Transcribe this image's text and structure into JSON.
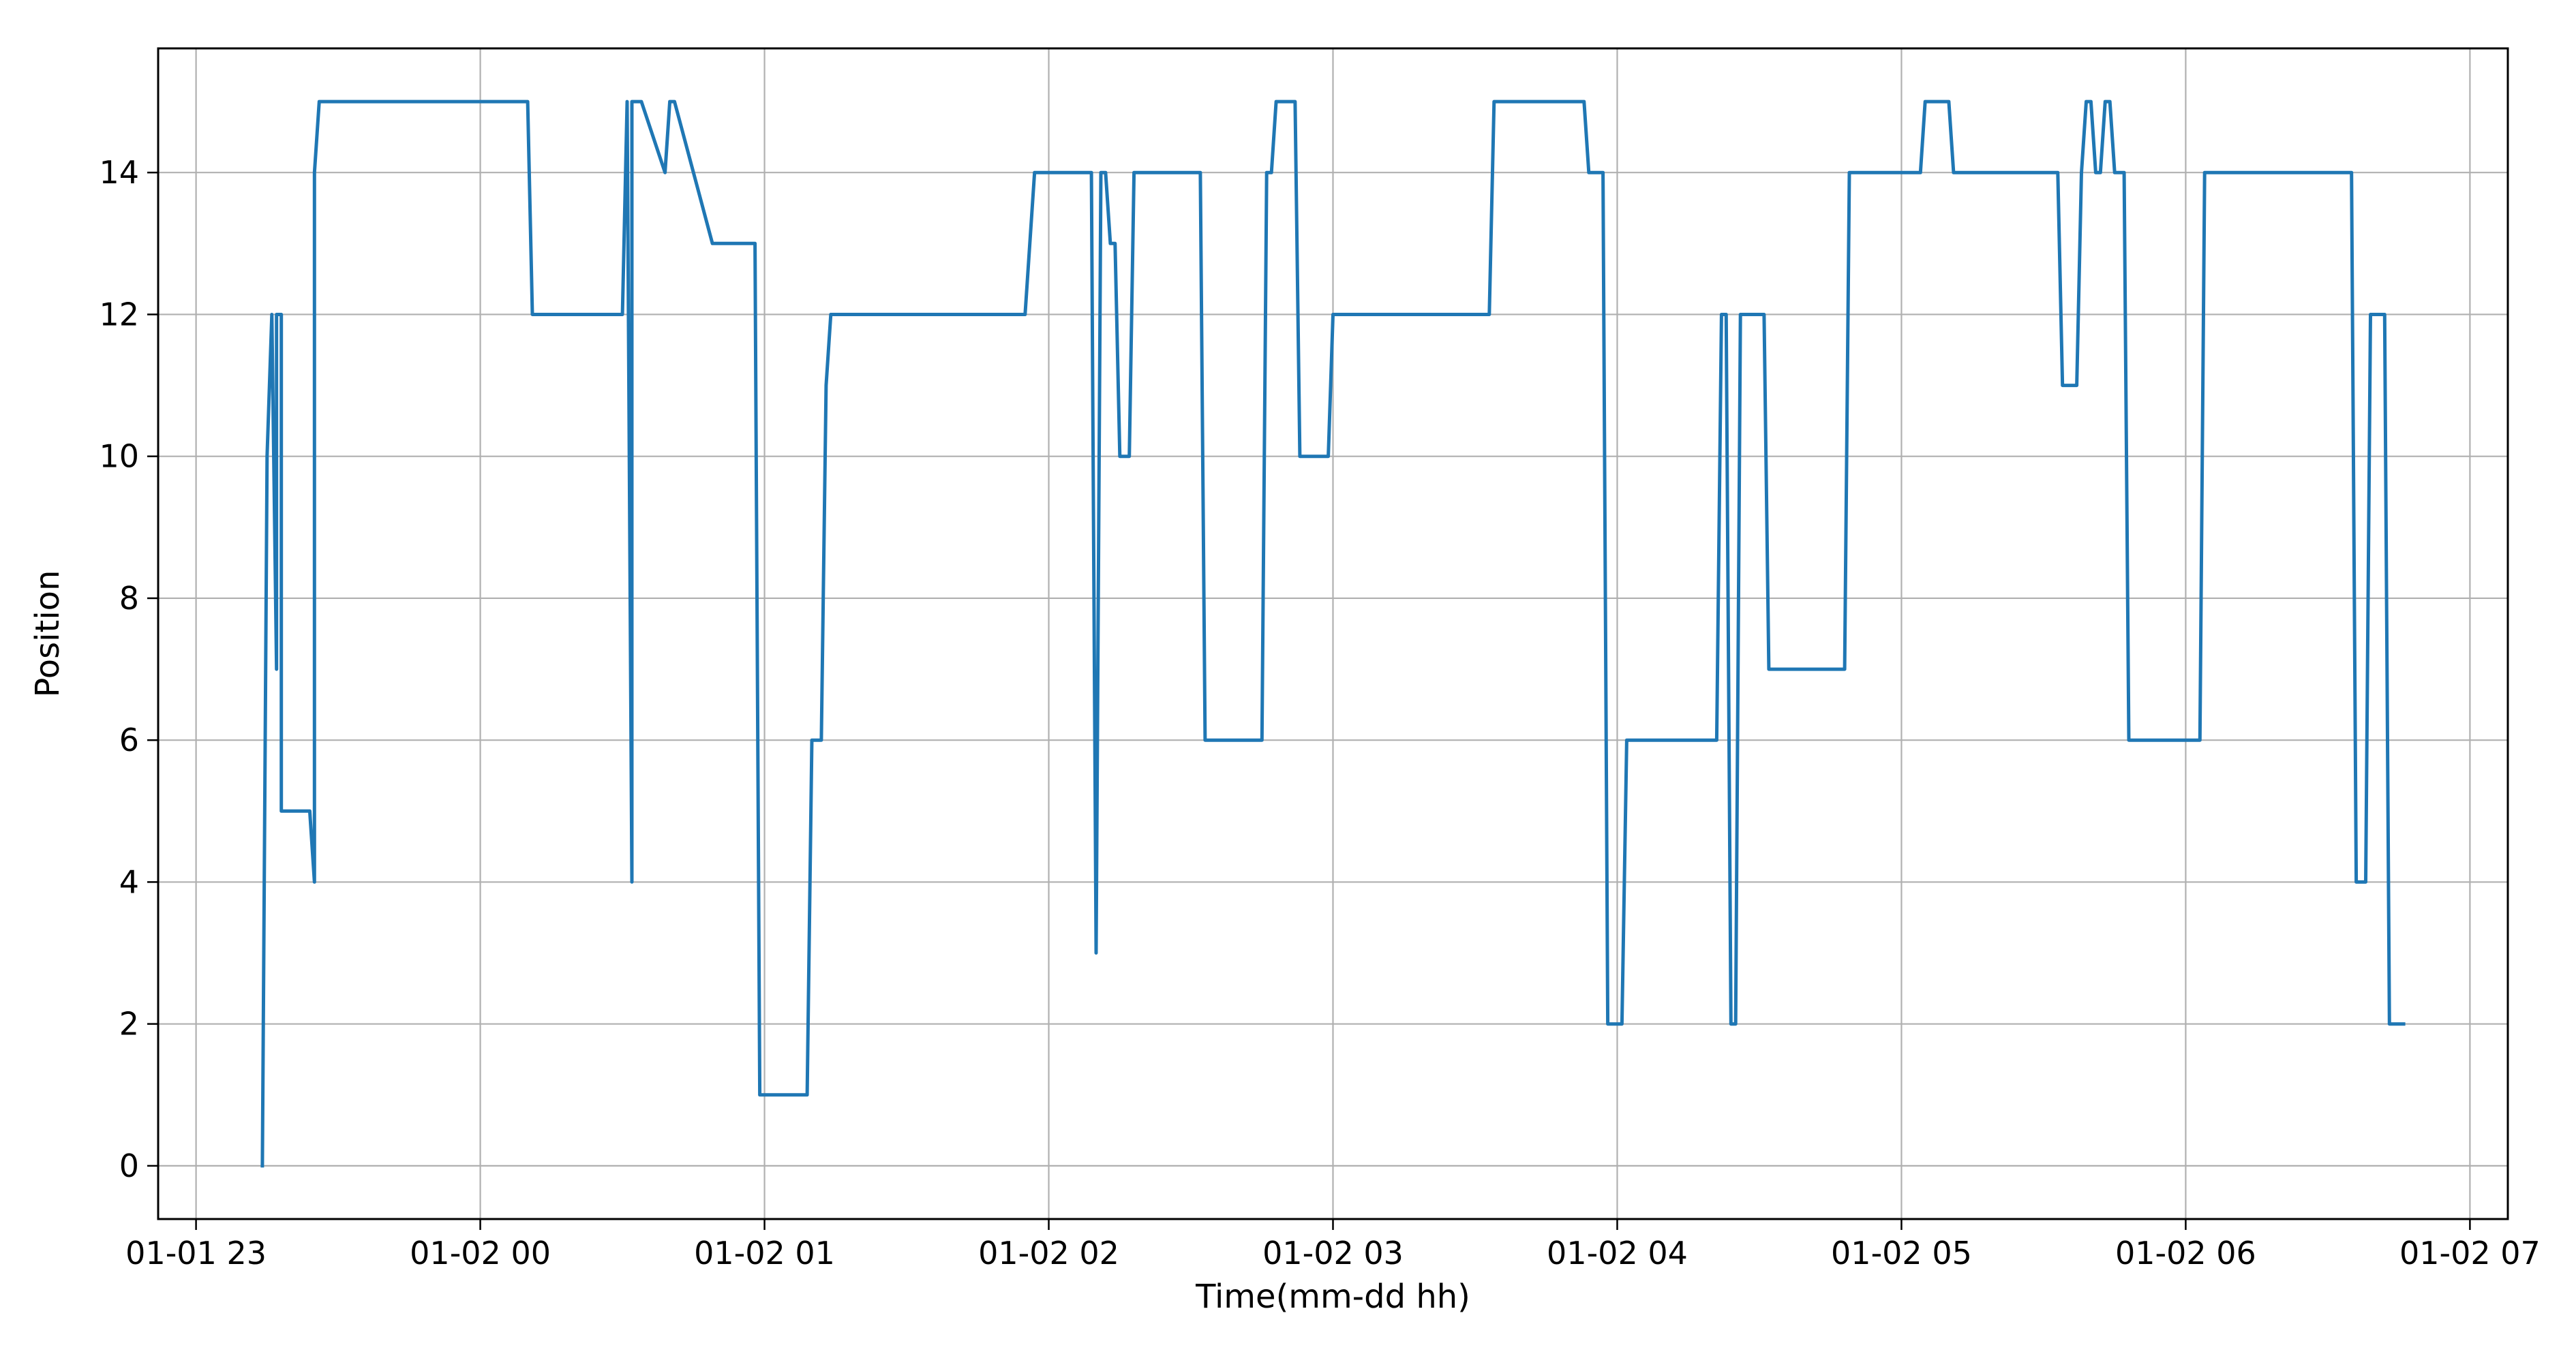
{
  "chart_data": {
    "type": "line",
    "title": "",
    "xlabel": "Time(mm-dd hh)",
    "ylabel": "Position",
    "xlim": [
      "01-01 22:52",
      "01-02 07:08"
    ],
    "ylim": [
      -0.75,
      15.75
    ],
    "x_ticks": [
      "01-01 23",
      "01-02 00",
      "01-02 01",
      "01-02 02",
      "01-02 03",
      "01-02 04",
      "01-02 05",
      "01-02 06",
      "01-02 07"
    ],
    "y_ticks": [
      0,
      2,
      4,
      6,
      8,
      10,
      12,
      14
    ],
    "grid": true,
    "legend": "none",
    "line_color": "#1f77b4",
    "series": [
      {
        "x": [
          "01-01 23:14",
          "01-01 23:15",
          "01-01 23:16",
          "01-01 23:17",
          "01-01 23:17",
          "01-01 23:18",
          "01-01 23:18",
          "01-01 23:19",
          "01-01 23:20",
          "01-01 23:24",
          "01-01 23:25",
          "01-01 23:25",
          "01-01 23:26",
          "01-01 23:27",
          "01-01 23:28",
          "01-02 00:10",
          "01-02 00:11",
          "01-02 00:30",
          "01-02 00:31",
          "01-02 00:32",
          "01-02 00:32",
          "01-02 00:33",
          "01-02 00:34",
          "01-02 00:39",
          "01-02 00:40",
          "01-02 00:41",
          "01-02 00:49",
          "01-02 00:50",
          "01-02 00:58",
          "01-02 00:59",
          "01-02 01:09",
          "01-02 01:10",
          "01-02 01:12",
          "01-02 01:13",
          "01-02 01:14",
          "01-02 01:55",
          "01-02 01:57",
          "01-02 02:09",
          "01-02 02:10",
          "01-02 02:11",
          "01-02 02:12",
          "01-02 02:13",
          "01-02 02:14",
          "01-02 02:15",
          "01-02 02:16",
          "01-02 02:17",
          "01-02 02:18",
          "01-02 02:19",
          "01-02 02:32",
          "01-02 02:33",
          "01-02 02:45",
          "01-02 02:46",
          "01-02 02:47",
          "01-02 02:48",
          "01-02 02:52",
          "01-02 02:53",
          "01-02 02:59",
          "01-02 03:00",
          "01-02 03:33",
          "01-02 03:34",
          "01-02 03:53",
          "01-02 03:54",
          "01-02 03:57",
          "01-02 03:58",
          "01-02 04:01",
          "01-02 04:02",
          "01-02 04:21",
          "01-02 04:22",
          "01-02 04:23",
          "01-02 04:24",
          "01-02 04:25",
          "01-02 04:26",
          "01-02 04:31",
          "01-02 04:32",
          "01-02 04:48",
          "01-02 04:49",
          "01-02 05:04",
          "01-02 05:05",
          "01-02 05:10",
          "01-02 05:11",
          "01-02 05:33",
          "01-02 05:34",
          "01-02 05:37",
          "01-02 05:38",
          "01-02 05:39",
          "01-02 05:40",
          "01-02 05:41",
          "01-02 05:42",
          "01-02 05:43",
          "01-02 05:44",
          "01-02 05:45",
          "01-02 05:47",
          "01-02 05:48",
          "01-02 06:03",
          "01-02 06:04",
          "01-02 06:35",
          "01-02 06:36",
          "01-02 06:38",
          "01-02 06:39",
          "01-02 06:42",
          "01-02 06:43",
          "01-02 06:44",
          "01-02 06:46"
        ],
        "y": [
          0,
          10,
          12,
          7,
          12,
          12,
          5,
          5,
          5,
          5,
          4,
          14,
          15,
          15,
          15,
          15,
          12,
          12,
          15,
          4,
          15,
          15,
          15,
          14,
          15,
          15,
          13,
          13,
          13,
          1,
          1,
          6,
          6,
          11,
          12,
          12,
          14,
          14,
          3,
          14,
          14,
          13,
          13,
          10,
          10,
          10,
          14,
          14,
          14,
          6,
          6,
          14,
          14,
          15,
          15,
          10,
          10,
          12,
          12,
          15,
          15,
          14,
          14,
          2,
          2,
          6,
          6,
          12,
          12,
          2,
          2,
          12,
          12,
          7,
          7,
          14,
          14,
          15,
          15,
          14,
          14,
          11,
          11,
          14,
          15,
          15,
          14,
          14,
          15,
          15,
          14,
          14,
          6,
          6,
          14,
          14,
          4,
          4,
          12,
          12,
          2,
          2,
          2
        ]
      }
    ]
  }
}
